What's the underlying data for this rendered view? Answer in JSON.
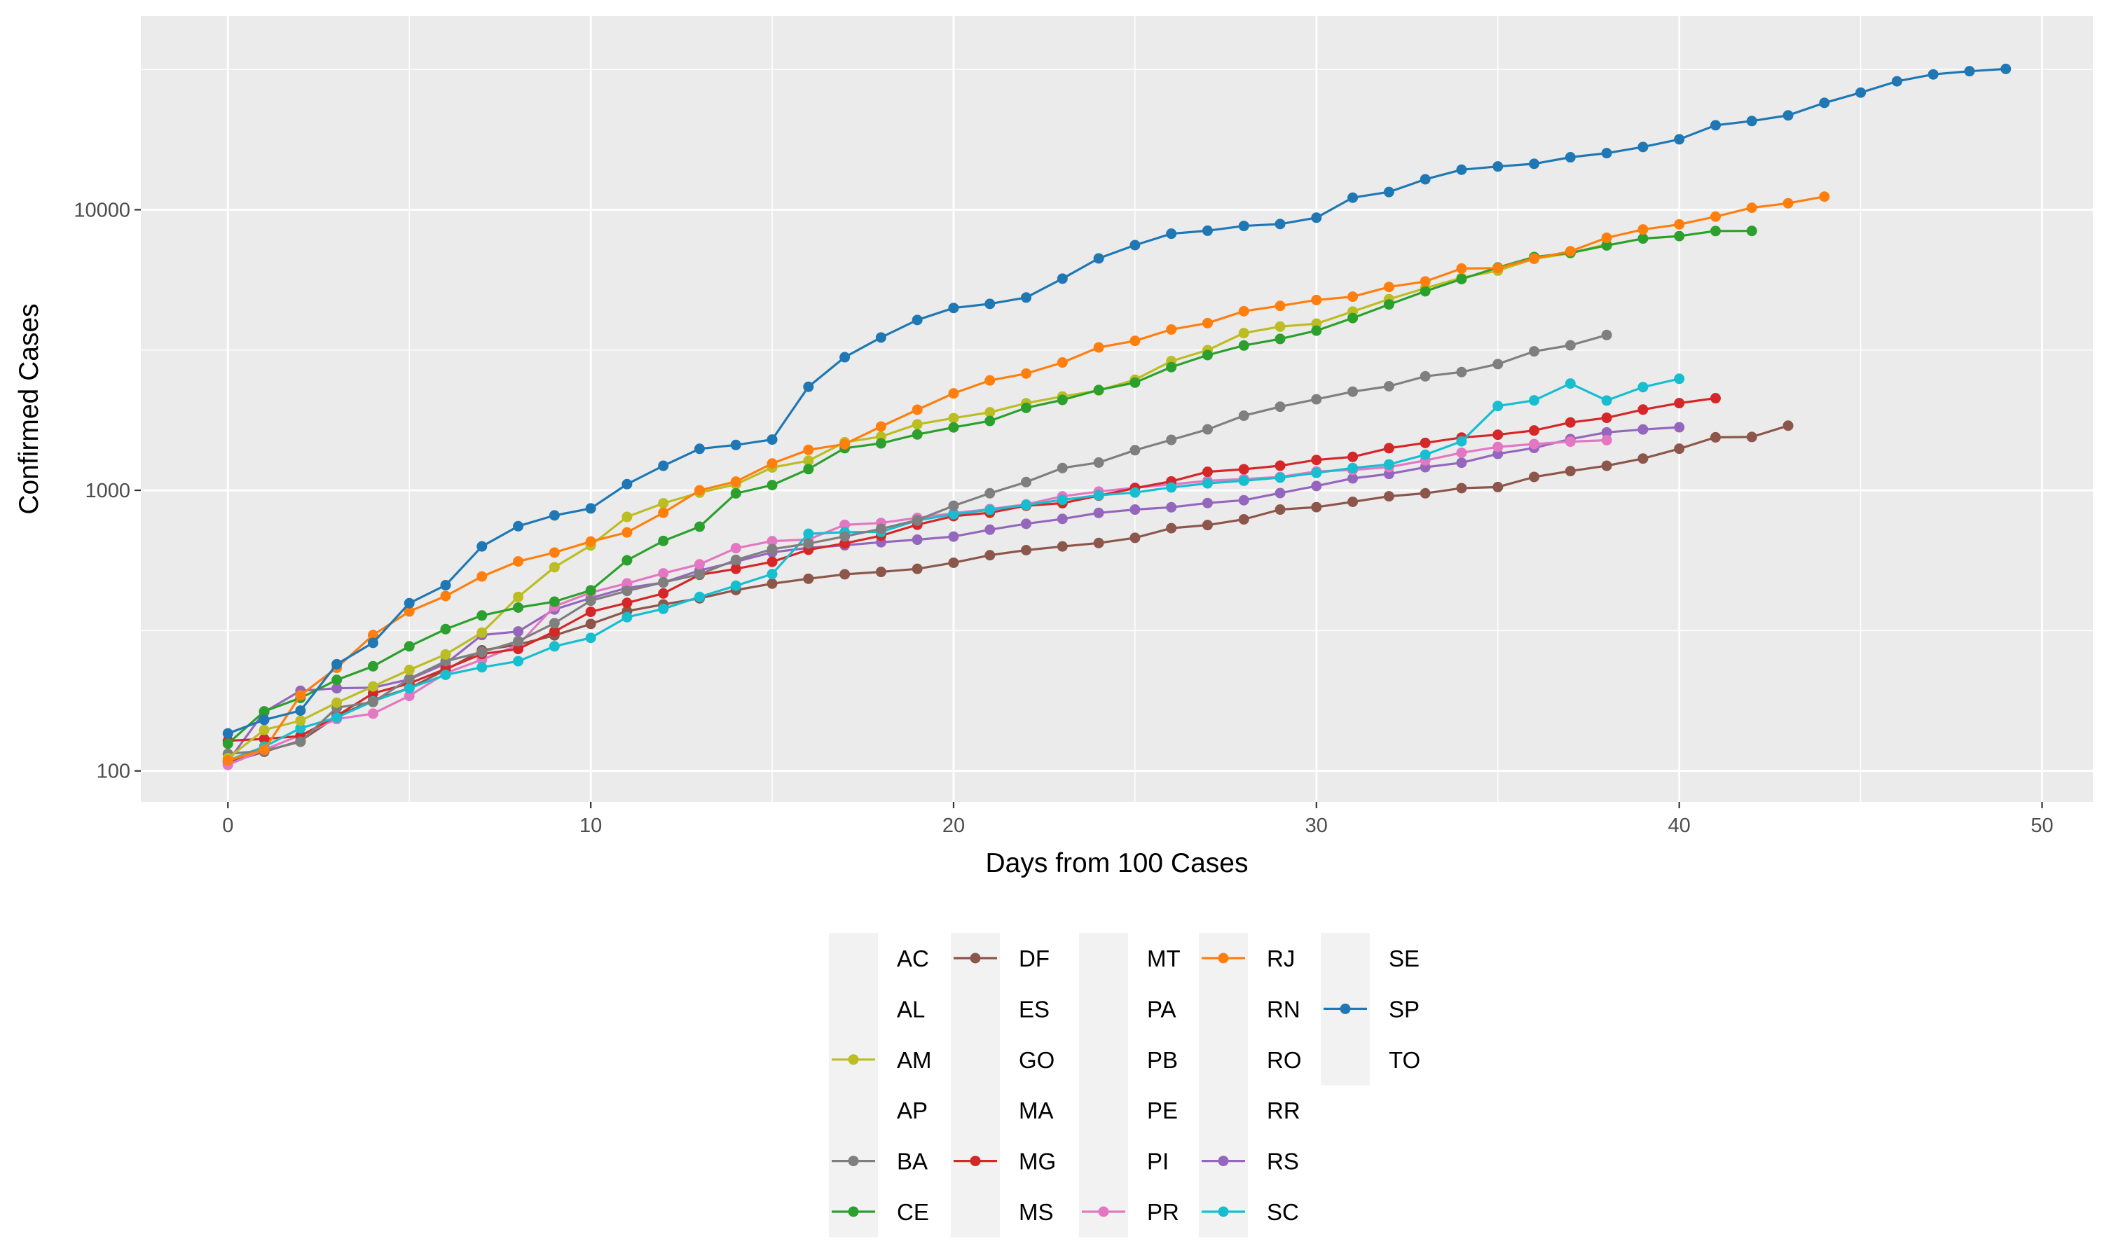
{
  "chart_data": {
    "type": "line",
    "xlabel": "Days from 100 Cases",
    "ylabel": "Confirmed Cases",
    "xlim": [
      -2.4,
      51.4
    ],
    "ylim": [
      77.5,
      49000
    ],
    "yscale": "log10",
    "x_ticks": [
      0,
      10,
      20,
      30,
      40,
      50
    ],
    "x_tick_labels": [
      "0",
      "10",
      "20",
      "30",
      "40",
      "50"
    ],
    "y_ticks": [
      100,
      1000,
      10000
    ],
    "y_tick_labels": [
      "100",
      "1000",
      "10000"
    ],
    "grid": true,
    "legend_position": "bottom",
    "legend": [
      {
        "name": "AC",
        "color": null
      },
      {
        "name": "AL",
        "color": null
      },
      {
        "name": "AM",
        "color": "#bcbd22"
      },
      {
        "name": "AP",
        "color": null
      },
      {
        "name": "BA",
        "color": "#7f7f7f"
      },
      {
        "name": "CE",
        "color": "#2ca02c"
      },
      {
        "name": "DF",
        "color": "#8c564b"
      },
      {
        "name": "ES",
        "color": null
      },
      {
        "name": "GO",
        "color": null
      },
      {
        "name": "MA",
        "color": null
      },
      {
        "name": "MG",
        "color": "#d62728"
      },
      {
        "name": "MS",
        "color": null
      },
      {
        "name": "MT",
        "color": null
      },
      {
        "name": "PA",
        "color": null
      },
      {
        "name": "PB",
        "color": null
      },
      {
        "name": "PE",
        "color": null
      },
      {
        "name": "PI",
        "color": null
      },
      {
        "name": "PR",
        "color": "#e377c2"
      },
      {
        "name": "RJ",
        "color": "#ff7f0e"
      },
      {
        "name": "RN",
        "color": null
      },
      {
        "name": "RO",
        "color": null
      },
      {
        "name": "RR",
        "color": null
      },
      {
        "name": "RS",
        "color": "#9467bd"
      },
      {
        "name": "SC",
        "color": "#17becf"
      },
      {
        "name": "SE",
        "color": null
      },
      {
        "name": "SP",
        "color": "#1f77b4"
      },
      {
        "name": "TO",
        "color": null
      }
    ],
    "series": [
      {
        "name": "SP",
        "color": "#1f77b4",
        "values": [
          136,
          152,
          164,
          240,
          286,
          396,
          459,
          631,
          745,
          814,
          862,
          1052,
          1223,
          1406,
          1451,
          1517,
          2339,
          2981,
          3506,
          4048,
          4466,
          4620,
          4866,
          5682,
          6708,
          7480,
          8216,
          8419,
          8755,
          8895,
          9371,
          11043,
          11568,
          12841,
          13894,
          14267,
          14580,
          15385,
          15914,
          16740,
          17826,
          20004,
          20715,
          21696,
          24041,
          26158,
          28698,
          30374,
          31174,
          31772
        ]
      },
      {
        "name": "RJ",
        "color": "#ff7f0e",
        "values": [
          109,
          119,
          186,
          233,
          305,
          370,
          420,
          493,
          558,
          600,
          657,
          708,
          832,
          1000,
          1074,
          1246,
          1394,
          1461,
          1688,
          1938,
          2216,
          2464,
          2607,
          2855,
          3231,
          3410,
          3743,
          3944,
          4349,
          4543,
          4768,
          4899,
          5306,
          5552,
          6172,
          6195,
          6703,
          7111,
          7944,
          8504,
          8869,
          9453,
          10166,
          10546,
          11139
        ]
      },
      {
        "name": "CE",
        "color": "#2ca02c",
        "values": [
          125,
          163,
          182,
          211,
          236,
          278,
          320,
          358,
          382,
          401,
          440,
          563,
          660,
          742,
          975,
          1044,
          1190,
          1413,
          1470,
          1582,
          1676,
          1767,
          1968,
          2100,
          2279,
          2420,
          2749,
          3034,
          3282,
          3464,
          3707,
          4112,
          4598,
          5122,
          5661,
          6226,
          6784,
          7022,
          7458,
          7897,
          8054,
          8400,
          8407
        ]
      },
      {
        "name": "AM",
        "color": "#bcbd22",
        "values": [
          111,
          140,
          151,
          175,
          200,
          229,
          260,
          311,
          417,
          532,
          636,
          804,
          899,
          981,
          1050,
          1206,
          1275,
          1484,
          1554,
          1719,
          1809,
          1897,
          2044,
          2160,
          2270,
          2479,
          2888,
          3160,
          3635,
          3833,
          3928,
          4337,
          4801,
          5254,
          5723,
          6068,
          6683,
          7003,
          7537
        ]
      },
      {
        "name": "BA",
        "color": "#7f7f7f",
        "values": [
          115,
          118,
          127,
          168,
          176,
          213,
          246,
          265,
          290,
          336,
          404,
          438,
          470,
          502,
          565,
          617,
          646,
          685,
          729,
          783,
          881,
          976,
          1070,
          1201,
          1256,
          1390,
          1513,
          1649,
          1845,
          1986,
          2111,
          2247,
          2349,
          2549,
          2639,
          2818,
          3128,
          3287,
          3578
        ]
      },
      {
        "name": "SC",
        "color": "#17becf",
        "values": [
          109,
          122,
          142,
          155,
          177,
          197,
          220,
          234,
          246,
          278,
          298,
          353,
          378,
          417,
          457,
          503,
          700,
          709,
          711,
          781,
          822,
          852,
          886,
          925,
          960,
          982,
          1024,
          1059,
          1082,
          1110,
          1154,
          1201,
          1237,
          1339,
          1495,
          1998,
          2092,
          2402,
          2090,
          2333,
          2498
        ]
      },
      {
        "name": "MG",
        "color": "#d62728",
        "values": [
          128,
          130,
          133,
          157,
          189,
          205,
          231,
          261,
          272,
          314,
          369,
          397,
          429,
          500,
          525,
          556,
          614,
          647,
          689,
          754,
          809,
          832,
          881,
          900,
          957,
          1018,
          1076,
          1164,
          1189,
          1224,
          1283,
          1316,
          1413,
          1476,
          1542,
          1578,
          1634,
          1745,
          1813,
          1940,
          2045,
          2130
        ]
      },
      {
        "name": "PR",
        "color": "#e377c2",
        "values": [
          105,
          119,
          134,
          153,
          160,
          185,
          223,
          249,
          281,
          386,
          432,
          466,
          506,
          545,
          622,
          659,
          668,
          753,
          765,
          798,
          829,
          857,
          891,
          952,
          990,
          1022,
          1050,
          1081,
          1097,
          1116,
          1168,
          1182,
          1210,
          1278,
          1361,
          1428,
          1462,
          1491,
          1509
        ]
      },
      {
        "name": "RS",
        "color": "#9467bd",
        "values": [
          108,
          162,
          193,
          197,
          198,
          212,
          241,
          305,
          314,
          376,
          413,
          449,
          469,
          518,
          557,
          601,
          624,
          637,
          653,
          667,
          684,
          724,
          760,
          791,
          831,
          854,
          870,
          901,
          922,
          978,
          1036,
          1103,
          1144,
          1209,
          1254,
          1348,
          1416,
          1523,
          1609,
          1648,
          1678
        ]
      },
      {
        "name": "DF",
        "color": "#8c564b",
        "values": [
          107,
          117,
          128,
          156,
          179,
          197,
          229,
          269,
          282,
          304,
          334,
          371,
          392,
          412,
          441,
          465,
          484,
          502,
          512,
          525,
          552,
          587,
          612,
          631,
          649,
          677,
          733,
          752,
          788,
          854,
          871,
          910,
          952,
          976,
          1018,
          1027,
          1116,
          1171,
          1223,
          1298,
          1407,
          1545,
          1549,
          1700
        ]
      }
    ]
  }
}
